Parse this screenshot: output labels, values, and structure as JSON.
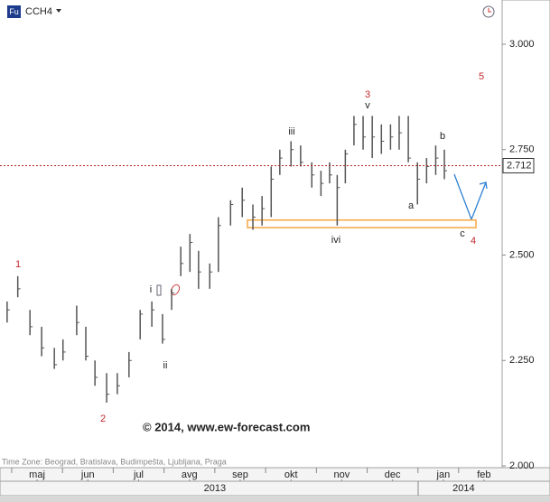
{
  "chart_data": {
    "type": "ohlc",
    "symbol": "CCH4",
    "symbol_icon": "Fu",
    "x": [
      -0.09,
      0.12,
      0.36,
      0.59,
      0.84,
      1.01,
      1.28,
      1.46,
      1.64,
      1.87,
      2.08,
      2.31,
      2.53,
      2.76,
      2.97,
      3.15,
      3.33,
      3.51,
      3.68,
      3.9,
      4.07,
      4.31,
      4.54,
      4.75,
      4.93,
      5.11,
      5.28,
      5.5,
      5.69,
      5.91,
      6.09,
      6.26,
      6.41,
      6.57,
      6.74,
      6.92,
      7.1,
      7.28,
      7.46,
      7.63,
      7.81,
      7.99,
      8.17,
      8.35,
      8.52
    ],
    "series": [
      {
        "color": "#555555",
        "high": [
          2.39,
          2.45,
          2.37,
          2.33,
          2.28,
          2.3,
          2.38,
          2.33,
          2.25,
          2.22,
          2.22,
          2.27,
          2.37,
          2.39,
          2.36,
          2.42,
          2.52,
          2.55,
          2.51,
          2.48,
          2.59,
          2.63,
          2.66,
          2.62,
          2.64,
          2.71,
          2.75,
          2.77,
          2.76,
          2.72,
          2.7,
          2.72,
          2.69,
          2.75,
          2.83,
          2.83,
          2.83,
          2.81,
          2.81,
          2.83,
          2.83,
          2.72,
          2.73,
          2.76,
          2.75
        ],
        "low": [
          2.34,
          2.4,
          2.31,
          2.26,
          2.23,
          2.25,
          2.31,
          2.25,
          2.19,
          2.15,
          2.17,
          2.21,
          2.3,
          2.33,
          2.29,
          2.37,
          2.45,
          2.46,
          2.42,
          2.42,
          2.46,
          2.57,
          2.59,
          2.56,
          2.57,
          2.59,
          2.69,
          2.71,
          2.71,
          2.66,
          2.64,
          2.67,
          2.57,
          2.67,
          2.76,
          2.75,
          2.73,
          2.74,
          2.75,
          2.75,
          2.72,
          2.62,
          2.67,
          2.69,
          2.68
        ],
        "close": [
          2.37,
          2.42,
          2.33,
          2.28,
          2.24,
          2.27,
          2.34,
          2.26,
          2.21,
          2.17,
          2.19,
          2.25,
          2.36,
          2.37,
          2.3,
          2.41,
          2.48,
          2.53,
          2.46,
          2.46,
          2.57,
          2.62,
          2.63,
          2.59,
          2.61,
          2.68,
          2.73,
          2.75,
          2.72,
          2.69,
          2.67,
          2.69,
          2.66,
          2.74,
          2.81,
          2.78,
          2.78,
          2.77,
          2.78,
          2.79,
          2.73,
          2.68,
          2.71,
          2.73,
          2.7
        ]
      }
    ],
    "last_price": 2.712,
    "last_price_color": "#b22222",
    "support_zone": [
      2.565,
      2.583
    ],
    "zone_color": "#f5a742",
    "xlim": [
      -0.23,
      9.64
    ],
    "xticks": [
      {
        "value": 0.5,
        "label": "maj"
      },
      {
        "value": 1.5,
        "label": "jun"
      },
      {
        "value": 2.5,
        "label": "jul"
      },
      {
        "value": 3.5,
        "label": "avg"
      },
      {
        "value": 4.5,
        "label": "sep"
      },
      {
        "value": 5.5,
        "label": "okt"
      },
      {
        "value": 6.5,
        "label": "nov"
      },
      {
        "value": 7.5,
        "label": "dec"
      },
      {
        "value": 8.5,
        "label": "jan"
      },
      {
        "value": 9.3,
        "label": "feb"
      }
    ],
    "years": [
      {
        "value": 4.0,
        "label": "2013"
      },
      {
        "value": 8.9,
        "label": "2014"
      }
    ],
    "ylim": [
      2.0,
      3.1
    ],
    "yticks": [
      {
        "value": 2.0,
        "label": "2.000"
      },
      {
        "value": 2.25,
        "label": "2.250"
      },
      {
        "value": 2.5,
        "label": "2.500"
      },
      {
        "value": 2.75,
        "label": "2.750"
      },
      {
        "value": 3.0,
        "label": "3.000"
      }
    ],
    "annotations": [
      {
        "text": "1",
        "color": "#c0282d"
      },
      {
        "text": "2",
        "color": "#c0282d"
      },
      {
        "text": "i",
        "color": "#222222"
      },
      {
        "text": "ii",
        "color": "#222222"
      },
      {
        "text": "iii",
        "color": "#222222"
      },
      {
        "text": "3",
        "color": "#c0282d"
      },
      {
        "text": "v",
        "color": "#222222"
      },
      {
        "text": "ivi",
        "color": "#222222"
      },
      {
        "text": "a",
        "color": "#222222"
      },
      {
        "text": "b",
        "color": "#222222"
      },
      {
        "text": "c",
        "color": "#222222"
      },
      {
        "text": "4",
        "color": "#c0282d"
      },
      {
        "text": "5",
        "color": "#c0282d"
      }
    ],
    "copyright": "© 2014, www.ew-forecast.com",
    "time_zone": "Time Zone: Beograd, Bratislava, Budimpešta, Ljubljana, Praga"
  }
}
